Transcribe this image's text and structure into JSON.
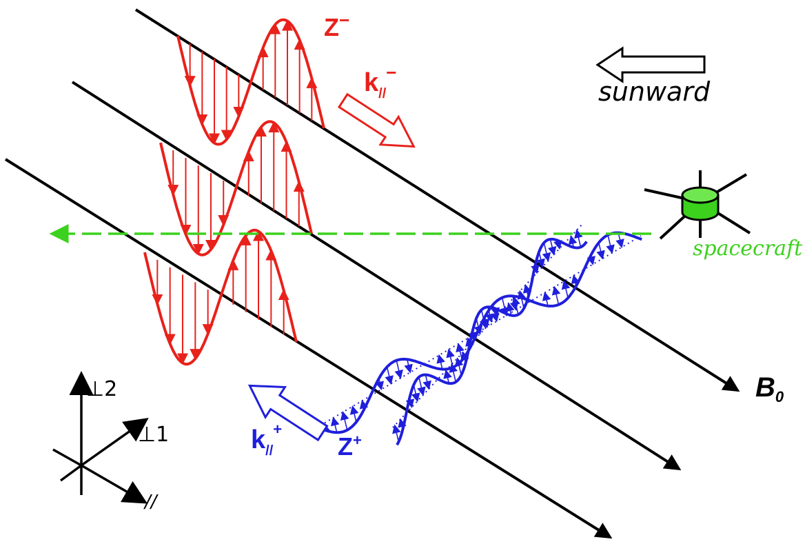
{
  "labels": {
    "z_minus_main": "Z",
    "z_minus_sup": "−",
    "k_minus_main": "k",
    "k_minus_sub": "//",
    "k_minus_sup": "−",
    "z_plus_main": "Z",
    "z_plus_sup": "+",
    "k_plus_main": "k",
    "k_plus_sub": "//",
    "k_plus_sup": "+",
    "sunward": "sunward",
    "spacecraft": "spacecraft",
    "b0_main": "B",
    "b0_sub": "0",
    "axis_perp2": "⊥2",
    "axis_perp1": "⊥1",
    "axis_parallel": "//"
  },
  "colors": {
    "z_minus": "#e8211b",
    "z_plus": "#1f1fdc",
    "spacecraft": "#3cd11e",
    "field_line": "#000000"
  }
}
